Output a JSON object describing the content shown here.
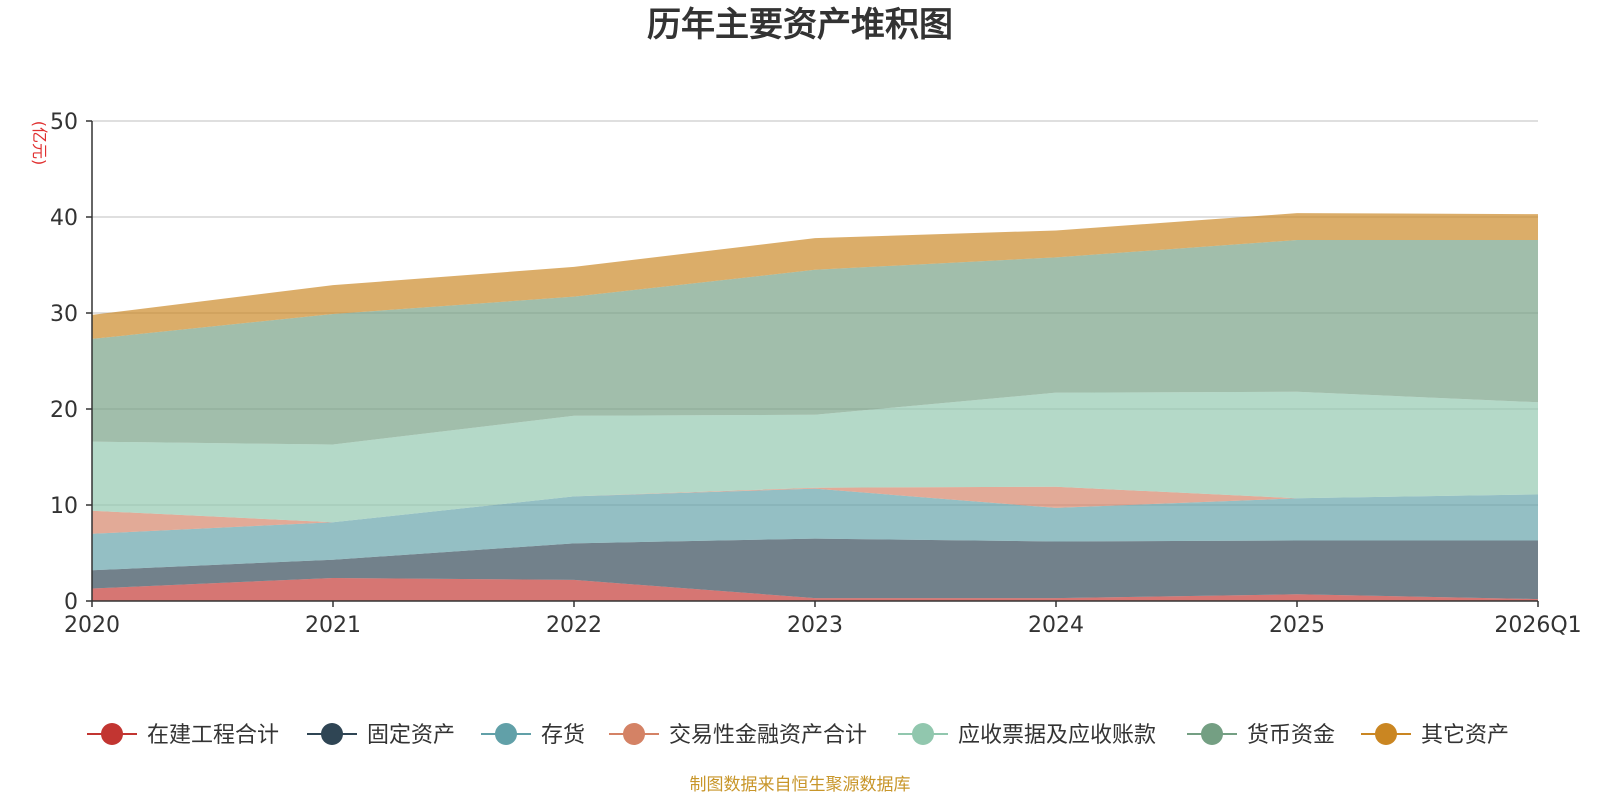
{
  "chart_data": {
    "type": "area",
    "stacked": true,
    "title": "历年主要资产堆积图",
    "ylabel": "(亿元)",
    "xlabel": "",
    "ylim": [
      0,
      50
    ],
    "yticks": [
      0,
      10,
      20,
      30,
      40,
      50
    ],
    "grid": true,
    "legend_position": "bottom",
    "categories": [
      "2020",
      "2021",
      "2022",
      "2023",
      "2024",
      "2025",
      "2026Q1"
    ],
    "series": [
      {
        "name": "在建工程合计",
        "color": "#c23531",
        "values": [
          1.3,
          2.4,
          2.2,
          0.3,
          0.3,
          0.7,
          0.2
        ]
      },
      {
        "name": "固定资产",
        "color": "#2f4554",
        "values": [
          1.9,
          1.9,
          3.8,
          6.2,
          5.9,
          5.6,
          6.1
        ]
      },
      {
        "name": "存货",
        "color": "#61a0a8",
        "values": [
          3.8,
          3.9,
          4.9,
          5.2,
          3.5,
          4.4,
          4.8
        ]
      },
      {
        "name": "交易性金融资产合计",
        "color": "#d48265",
        "values": [
          2.4,
          0.0,
          0.0,
          0.1,
          2.2,
          0.0,
          0.0
        ]
      },
      {
        "name": "应收票据及应收账款",
        "color": "#91c7ae",
        "values": [
          7.2,
          8.1,
          8.4,
          7.6,
          9.8,
          11.1,
          9.6
        ]
      },
      {
        "name": "货币资金",
        "color": "#749f83",
        "values": [
          10.7,
          13.6,
          12.4,
          15.1,
          14.1,
          15.8,
          16.9
        ]
      },
      {
        "name": "其它资产",
        "color": "#ca8622",
        "values": [
          2.5,
          3.0,
          3.1,
          3.3,
          2.8,
          2.8,
          2.7
        ]
      }
    ]
  },
  "footer": {
    "source": "制图数据来自恒生聚源数据库"
  },
  "colors": {
    "title": "#333333",
    "unit_label": "#e03030",
    "source": "#c8962a",
    "grid": "#cccccc",
    "axis": "#333333"
  }
}
